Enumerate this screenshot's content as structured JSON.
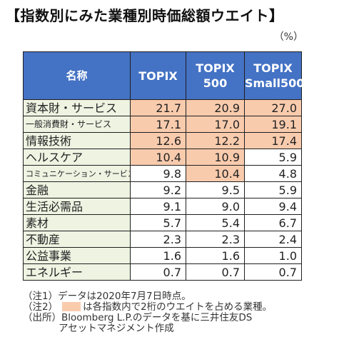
{
  "title": "【指数別にみた業種別時価総額ウエイト】",
  "unit": "（%）",
  "table": {
    "headers": [
      {
        "label": "名称"
      },
      {
        "label": "TOPIX"
      },
      {
        "line1": "TOPIX",
        "line2": "500"
      },
      {
        "line1": "TOPIX",
        "line2": "Small500"
      }
    ],
    "rows": [
      {
        "name": "資本財・サービス",
        "size": "normal",
        "values": [
          "21.7",
          "20.9",
          "27.0"
        ],
        "highlight": [
          true,
          true,
          true
        ]
      },
      {
        "name": "一般消費財・サービス",
        "size": "small",
        "values": [
          "17.1",
          "17.0",
          "19.1"
        ],
        "highlight": [
          true,
          true,
          true
        ]
      },
      {
        "name": "情報技術",
        "size": "normal",
        "values": [
          "12.6",
          "12.2",
          "17.4"
        ],
        "highlight": [
          true,
          true,
          true
        ]
      },
      {
        "name": "ヘルスケア",
        "size": "normal",
        "values": [
          "10.4",
          "10.9",
          "5.9"
        ],
        "highlight": [
          true,
          true,
          false
        ]
      },
      {
        "name": "コミュニケーション・サービス",
        "size": "xsmall",
        "values": [
          "9.8",
          "10.4",
          "4.8"
        ],
        "highlight": [
          false,
          true,
          false
        ]
      },
      {
        "name": "金融",
        "size": "normal",
        "values": [
          "9.2",
          "9.5",
          "5.9"
        ],
        "highlight": [
          false,
          false,
          false
        ]
      },
      {
        "name": "生活必需品",
        "size": "normal",
        "values": [
          "9.1",
          "9.0",
          "9.4"
        ],
        "highlight": [
          false,
          false,
          false
        ]
      },
      {
        "name": "素材",
        "size": "normal",
        "values": [
          "5.7",
          "5.4",
          "6.7"
        ],
        "highlight": [
          false,
          false,
          false
        ]
      },
      {
        "name": "不動産",
        "size": "normal",
        "values": [
          "2.3",
          "2.3",
          "2.4"
        ],
        "highlight": [
          false,
          false,
          false
        ]
      },
      {
        "name": "公益事業",
        "size": "normal",
        "values": [
          "1.6",
          "1.6",
          "1.0"
        ],
        "highlight": [
          false,
          false,
          false
        ]
      },
      {
        "name": "エネルギー",
        "size": "normal",
        "values": [
          "0.7",
          "0.7",
          "0.7"
        ],
        "highlight": [
          false,
          false,
          false
        ]
      }
    ]
  },
  "notes": {
    "note1": "（注1）データは2020年7月7日時点。",
    "note2_prefix": "（注2）",
    "note2_text": "は各指数内で2桁のウエイトを占める業種。",
    "source_line1": "（出所）Bloomberg L.P.のデータを基に三井住友DS",
    "source_line2": "アセットマネジメント作成"
  },
  "colors": {
    "header_bg": "#4472c4",
    "highlight": "#f9cbad",
    "name_col_bg": "#eef3e2"
  }
}
